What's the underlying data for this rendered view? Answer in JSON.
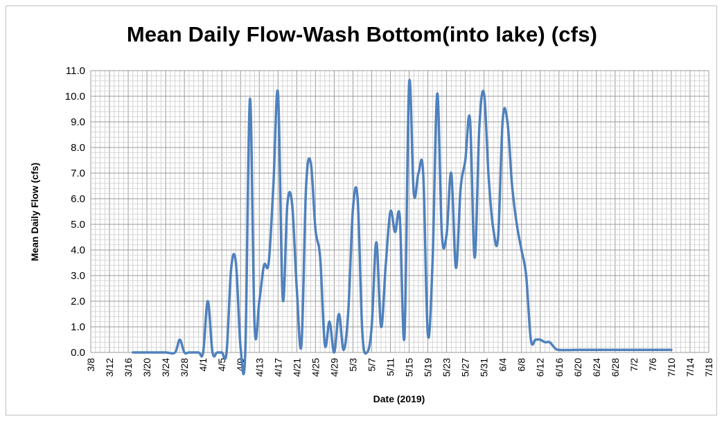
{
  "chart_data": {
    "type": "line",
    "title": "Mean Daily Flow-Wash Bottom(into lake) (cfs)",
    "xlabel": "Date (2019)",
    "ylabel": "Mean Daily Flow (cfs)",
    "ylim": [
      0,
      11
    ],
    "xlim": [
      "2019-03-08",
      "2019-07-18"
    ],
    "y_ticks": [
      "0.0",
      "1.0",
      "2.0",
      "3.0",
      "4.0",
      "5.0",
      "6.0",
      "7.0",
      "8.0",
      "9.0",
      "10.0",
      "11.0"
    ],
    "x_ticks": [
      "3/8",
      "3/12",
      "3/16",
      "3/20",
      "3/24",
      "3/28",
      "4/1",
      "4/5",
      "4/9",
      "4/13",
      "4/17",
      "4/21",
      "4/25",
      "4/29",
      "5/3",
      "5/7",
      "5/11",
      "5/15",
      "5/19",
      "5/23",
      "5/27",
      "5/31",
      "6/4",
      "6/8",
      "6/12",
      "6/16",
      "6/20",
      "6/24",
      "6/28",
      "7/2",
      "7/6",
      "7/10",
      "7/14",
      "7/18"
    ],
    "grid": true,
    "legend": "none",
    "line_color": "#4f81bd",
    "series": [
      {
        "x": [
          "2019-03-17",
          "2019-03-20",
          "2019-03-24",
          "2019-03-26",
          "2019-03-27",
          "2019-03-28",
          "2019-03-29",
          "2019-03-31",
          "2019-04-01",
          "2019-04-02",
          "2019-04-03",
          "2019-04-04",
          "2019-04-05",
          "2019-04-06",
          "2019-04-07",
          "2019-04-08",
          "2019-04-09",
          "2019-04-10",
          "2019-04-11",
          "2019-04-12",
          "2019-04-13",
          "2019-04-14",
          "2019-04-15",
          "2019-04-16",
          "2019-04-17",
          "2019-04-18",
          "2019-04-19",
          "2019-04-20",
          "2019-04-21",
          "2019-04-22",
          "2019-04-23",
          "2019-04-24",
          "2019-04-25",
          "2019-04-26",
          "2019-04-27",
          "2019-04-28",
          "2019-04-29",
          "2019-04-30",
          "2019-05-01",
          "2019-05-02",
          "2019-05-03",
          "2019-05-04",
          "2019-05-05",
          "2019-05-06",
          "2019-05-07",
          "2019-05-08",
          "2019-05-09",
          "2019-05-10",
          "2019-05-11",
          "2019-05-12",
          "2019-05-13",
          "2019-05-14",
          "2019-05-15",
          "2019-05-16",
          "2019-05-17",
          "2019-05-18",
          "2019-05-19",
          "2019-05-20",
          "2019-05-21",
          "2019-05-22",
          "2019-05-23",
          "2019-05-24",
          "2019-05-25",
          "2019-05-26",
          "2019-05-27",
          "2019-05-28",
          "2019-05-29",
          "2019-05-30",
          "2019-05-31",
          "2019-06-01",
          "2019-06-02",
          "2019-06-03",
          "2019-06-04",
          "2019-06-05",
          "2019-06-06",
          "2019-06-07",
          "2019-06-08",
          "2019-06-09",
          "2019-06-10",
          "2019-06-11",
          "2019-06-12",
          "2019-06-13",
          "2019-06-14",
          "2019-06-15",
          "2019-06-16",
          "2019-06-20",
          "2019-06-24",
          "2019-06-28",
          "2019-07-02",
          "2019-07-06",
          "2019-07-10"
        ],
        "values": [
          0,
          0,
          0,
          0,
          0.5,
          0,
          0,
          0,
          0,
          2.0,
          0,
          0,
          0,
          0,
          3.3,
          3.5,
          0.2,
          0,
          9.9,
          1.0,
          2.0,
          3.4,
          3.5,
          6.5,
          10.1,
          2.1,
          5.8,
          5.8,
          2.5,
          0.3,
          6.5,
          7.4,
          4.8,
          3.7,
          0.3,
          1.2,
          0,
          1.5,
          0.1,
          1.6,
          5.6,
          6.0,
          0.8,
          0,
          1.0,
          4.3,
          1.0,
          3.4,
          5.5,
          4.7,
          5.3,
          0.6,
          10.5,
          6.2,
          7.0,
          7.0,
          0.7,
          3.5,
          10.1,
          4.6,
          4.6,
          7.0,
          3.3,
          6.4,
          7.5,
          9.1,
          3.7,
          8.8,
          10.1,
          6.8,
          4.8,
          4.5,
          9.1,
          9.0,
          6.5,
          5.0,
          4.0,
          3.0,
          0.5,
          0.5,
          0.5,
          0.4,
          0.4,
          0.2,
          0.1,
          0.1,
          0.1,
          0.1,
          0.1,
          0.1,
          0.1
        ]
      }
    ]
  }
}
